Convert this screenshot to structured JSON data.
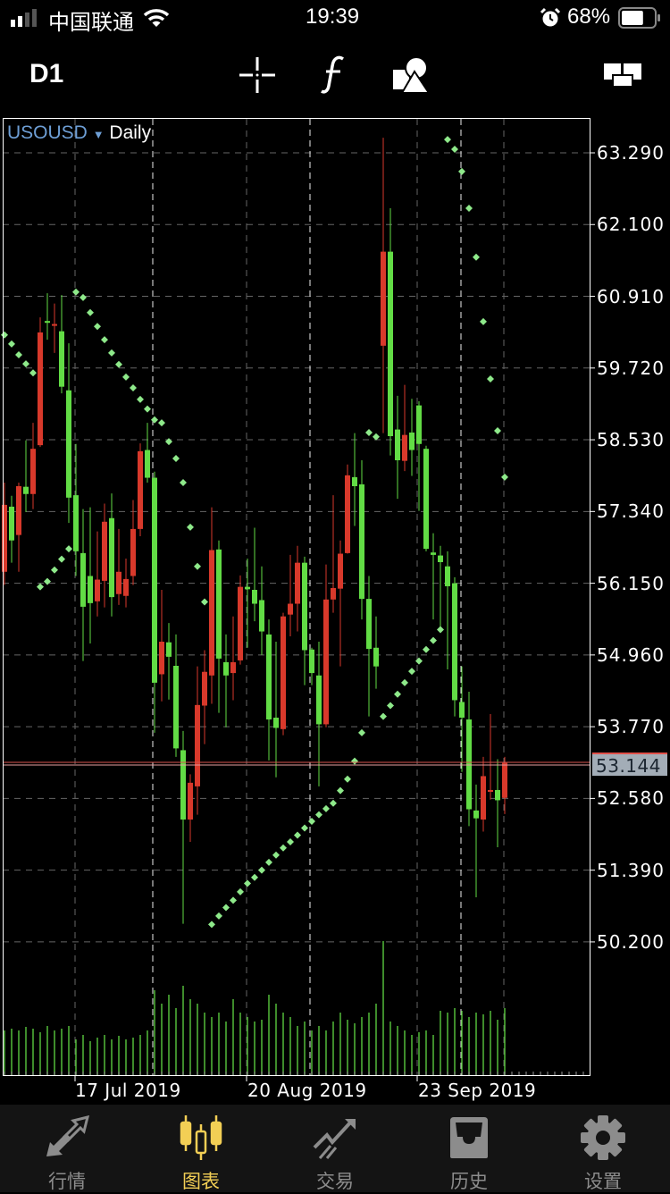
{
  "status_bar": {
    "carrier": "中国联通",
    "time": "19:39",
    "battery": "68%",
    "battery_level": 0.68,
    "icons": [
      "signal-icon",
      "wifi-icon",
      "alarm-icon",
      "battery-icon"
    ]
  },
  "toolbar": {
    "timeframe": "D1",
    "icons": [
      "crosshair-icon",
      "indicator-f-icon",
      "objects-shapes-icon",
      "layout-icon"
    ]
  },
  "chart_header": {
    "symbol": "USOUSD",
    "period": "Daily"
  },
  "colors": {
    "bull": "#62dc45",
    "bear": "#d8392b",
    "sar": "#8ee98a",
    "symbol": "#6e9fd6",
    "bid_line": "#d9534f",
    "active_tab": "#f3cf55",
    "inactive_tab": "#8c8c8c"
  },
  "chart_data": {
    "type": "candlestick",
    "symbol": "USOUSD",
    "period": "Daily",
    "ylim": [
      49.6,
      63.6
    ],
    "grid": true,
    "y_ticks": [
      "63.290",
      "62.100",
      "60.910",
      "59.720",
      "58.530",
      "57.340",
      "56.150",
      "54.960",
      "53.770",
      "52.580",
      "51.390",
      "50.200"
    ],
    "x_tick_labels": [
      "17 Jul 2019",
      "20 Aug 2019",
      "23 Sep 2019"
    ],
    "current_price": "53.144",
    "candles_ohlc": [
      [
        57.45,
        57.82,
        56.12,
        56.34
      ],
      [
        56.86,
        57.6,
        56.49,
        57.42
      ],
      [
        57.76,
        57.82,
        56.34,
        56.95
      ],
      [
        57.63,
        58.52,
        57.33,
        57.75
      ],
      [
        58.38,
        58.81,
        57.38,
        57.63
      ],
      [
        60.31,
        60.56,
        58.41,
        58.44
      ],
      [
        60.47,
        60.96,
        60.19,
        60.5
      ],
      [
        60.45,
        60.79,
        59.97,
        60.42
      ],
      [
        59.41,
        60.93,
        59.3,
        60.33
      ],
      [
        57.57,
        60.13,
        57.15,
        59.35
      ],
      [
        56.68,
        58.46,
        56.27,
        57.61
      ],
      [
        55.76,
        57.38,
        54.86,
        56.65
      ],
      [
        55.82,
        57.41,
        55.15,
        56.27
      ],
      [
        56.21,
        57.01,
        55.6,
        55.85
      ],
      [
        57.17,
        57.47,
        55.75,
        56.19
      ],
      [
        55.92,
        57.64,
        55.6,
        57.23
      ],
      [
        56.34,
        57.05,
        55.79,
        55.97
      ],
      [
        56.22,
        56.56,
        55.75,
        55.94
      ],
      [
        57.05,
        57.53,
        56.12,
        56.27
      ],
      [
        58.34,
        58.47,
        56.93,
        57.05
      ],
      [
        57.9,
        58.81,
        57.82,
        58.36
      ],
      [
        54.5,
        58.0,
        53.67,
        57.9
      ],
      [
        55.18,
        56.04,
        54.19,
        54.64
      ],
      [
        54.93,
        55.49,
        54.22,
        55.17
      ],
      [
        53.41,
        55.3,
        53.27,
        54.78
      ],
      [
        52.23,
        53.7,
        50.5,
        53.38
      ],
      [
        52.84,
        52.98,
        51.86,
        52.23
      ],
      [
        54.13,
        54.77,
        52.31,
        52.78
      ],
      [
        54.68,
        55.04,
        53.48,
        54.12
      ],
      [
        56.7,
        57.41,
        54.15,
        54.62
      ],
      [
        54.9,
        56.86,
        54.0,
        56.71
      ],
      [
        54.62,
        55.3,
        53.76,
        54.84
      ],
      [
        54.84,
        55.6,
        54.21,
        54.66
      ],
      [
        56.09,
        56.28,
        54.8,
        54.87
      ],
      [
        56.05,
        56.56,
        55.08,
        56.09
      ],
      [
        55.81,
        57.07,
        55.52,
        56.04
      ],
      [
        55.35,
        56.43,
        54.96,
        55.87
      ],
      [
        53.89,
        55.55,
        53.21,
        55.3
      ],
      [
        53.75,
        55.18,
        52.93,
        53.92
      ],
      [
        55.6,
        55.66,
        53.63,
        53.73
      ],
      [
        55.81,
        56.62,
        55.27,
        55.63
      ],
      [
        56.49,
        56.77,
        55.35,
        55.81
      ],
      [
        55.04,
        56.59,
        54.46,
        56.49
      ],
      [
        54.66,
        55.08,
        54.46,
        55.05
      ],
      [
        53.81,
        55.18,
        52.78,
        54.62
      ],
      [
        55.88,
        56.46,
        53.76,
        53.81
      ],
      [
        56.07,
        57.61,
        55.66,
        55.88
      ],
      [
        56.64,
        56.86,
        54.77,
        56.06
      ],
      [
        57.94,
        58.12,
        56.64,
        56.65
      ],
      [
        57.76,
        58.64,
        57.1,
        57.91
      ],
      [
        55.89,
        58.19,
        55.55,
        57.79
      ],
      [
        55.06,
        56.27,
        53.94,
        55.89
      ],
      [
        54.77,
        55.6,
        54.4,
        55.08
      ],
      [
        61.65,
        63.54,
        58.64,
        60.09
      ],
      [
        58.59,
        62.37,
        58.27,
        61.65
      ],
      [
        58.19,
        59.26,
        57.55,
        58.7
      ],
      [
        58.61,
        59.44,
        58.01,
        58.18
      ],
      [
        58.36,
        59.21,
        57.93,
        58.65
      ],
      [
        58.46,
        59.17,
        57.35,
        59.1
      ],
      [
        56.72,
        58.43,
        56.68,
        58.38
      ],
      [
        56.62,
        56.98,
        55.55,
        56.66
      ],
      [
        56.5,
        56.77,
        55.39,
        56.61
      ],
      [
        56.1,
        56.68,
        54.72,
        56.43
      ],
      [
        54.21,
        56.25,
        53.94,
        56.15
      ],
      [
        53.92,
        54.77,
        53.02,
        54.18
      ],
      [
        52.4,
        54.35,
        52.12,
        53.89
      ],
      [
        52.25,
        52.81,
        50.94,
        52.38
      ],
      [
        52.95,
        53.27,
        52.03,
        52.23
      ],
      [
        52.72,
        53.98,
        52.56,
        52.69
      ],
      [
        52.55,
        53.23,
        51.77,
        52.72
      ],
      [
        53.17,
        53.27,
        52.32,
        52.59
      ]
    ],
    "parabolic_sar": [
      60.27,
      60.12,
      59.94,
      59.79,
      59.64,
      56.09,
      56.18,
      56.37,
      56.55,
      56.72,
      60.98,
      60.89,
      60.64,
      60.41,
      60.19,
      59.97,
      59.78,
      59.57,
      59.39,
      59.2,
      59.04,
      58.86,
      58.81,
      58.5,
      58.22,
      57.82,
      57.08,
      56.43,
      55.84,
      50.49,
      50.63,
      50.77,
      50.89,
      51.03,
      51.17,
      51.27,
      51.39,
      51.52,
      51.64,
      51.76,
      51.86,
      51.97,
      52.09,
      52.2,
      52.31,
      52.41,
      52.5,
      52.71,
      52.9,
      53.2,
      53.67,
      58.65,
      58.58,
      53.94,
      54.12,
      54.31,
      54.5,
      54.69,
      54.86,
      55.05,
      55.2,
      55.38,
      63.51,
      63.35,
      62.98,
      62.37,
      61.56,
      60.49,
      59.54,
      58.68,
      57.91
    ],
    "volume_relative": [
      50,
      52,
      50,
      54,
      52,
      48,
      55,
      50,
      52,
      55,
      40,
      45,
      38,
      42,
      45,
      40,
      44,
      40,
      42,
      45,
      50,
      95,
      80,
      90,
      75,
      100,
      85,
      80,
      70,
      65,
      70,
      60,
      85,
      70,
      65,
      60,
      62,
      90,
      80,
      70,
      65,
      55,
      60,
      50,
      55,
      50,
      60,
      70,
      62,
      58,
      65,
      70,
      80,
      150,
      60,
      55,
      50,
      45,
      48,
      50,
      45,
      72,
      70,
      75,
      72,
      65,
      70,
      68,
      72,
      62,
      75
    ]
  },
  "bottom_nav": {
    "items": [
      {
        "label": "行情",
        "icon": "quotes-arrows-icon",
        "active": false
      },
      {
        "label": "图表",
        "icon": "candlestick-chart-icon",
        "active": true
      },
      {
        "label": "交易",
        "icon": "trade-trend-icon",
        "active": false
      },
      {
        "label": "历史",
        "icon": "history-inbox-icon",
        "active": false
      },
      {
        "label": "设置",
        "icon": "settings-gear-icon",
        "active": false
      }
    ]
  }
}
